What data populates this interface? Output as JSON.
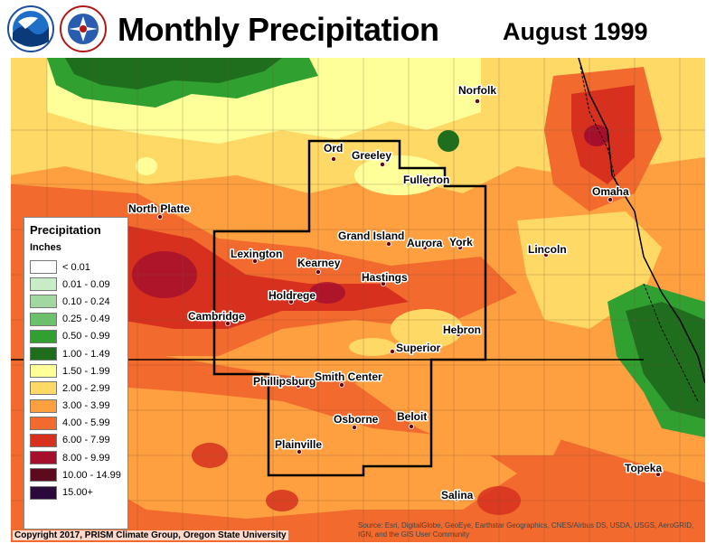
{
  "header": {
    "title": "Monthly Precipitation",
    "date": "August 1999"
  },
  "legend": {
    "title": "Precipitation",
    "units": "Inches",
    "items": [
      {
        "label": "< 0.01",
        "color": "#ffffff"
      },
      {
        "label": "0.01 - 0.09",
        "color": "#c8ebc8"
      },
      {
        "label": "0.10 - 0.24",
        "color": "#a0d8a0"
      },
      {
        "label": "0.25 - 0.49",
        "color": "#6cbf6c"
      },
      {
        "label": "0.50 - 0.99",
        "color": "#30a030"
      },
      {
        "label": "1.00 - 1.49",
        "color": "#1e6e1e"
      },
      {
        "label": "1.50 - 1.99",
        "color": "#ffff99"
      },
      {
        "label": "2.00 - 2.99",
        "color": "#ffd966"
      },
      {
        "label": "3.00 - 3.99",
        "color": "#ffa040"
      },
      {
        "label": "4.00 - 5.99",
        "color": "#f26a2e"
      },
      {
        "label": "6.00 - 7.99",
        "color": "#d7301f"
      },
      {
        "label": "8.00 - 9.99",
        "color": "#a50f2d"
      },
      {
        "label": "10.00 - 14.99",
        "color": "#5e0a1e"
      },
      {
        "label": "15.00+",
        "color": "#2a0a3a"
      }
    ]
  },
  "cities": [
    {
      "name": "Norfolk"
    },
    {
      "name": "Ord"
    },
    {
      "name": "Greeley"
    },
    {
      "name": "Fullerton"
    },
    {
      "name": "Omaha"
    },
    {
      "name": "North Platte"
    },
    {
      "name": "Grand Island"
    },
    {
      "name": "Aurora"
    },
    {
      "name": "York"
    },
    {
      "name": "Lincoln"
    },
    {
      "name": "Lexington"
    },
    {
      "name": "Kearney"
    },
    {
      "name": "Hastings"
    },
    {
      "name": "Holdrege"
    },
    {
      "name": "Cambridge"
    },
    {
      "name": "Hebron"
    },
    {
      "name": "Superior"
    },
    {
      "name": "Phillipsburg"
    },
    {
      "name": "Smith Center"
    },
    {
      "name": "Osborne"
    },
    {
      "name": "Beloit"
    },
    {
      "name": "Plainville"
    },
    {
      "name": "Topeka"
    },
    {
      "name": "Salina"
    }
  ],
  "footer": {
    "copyright": "Copyright 2017, PRISM Climate Group, Oregon State University",
    "source": "Source: Esri, DigitalGlobe, GeoEye, Earthstar Geographics, CNES/Airbus DS, USDA, USGS, AeroGRID, IGN, and the GIS User Community"
  }
}
